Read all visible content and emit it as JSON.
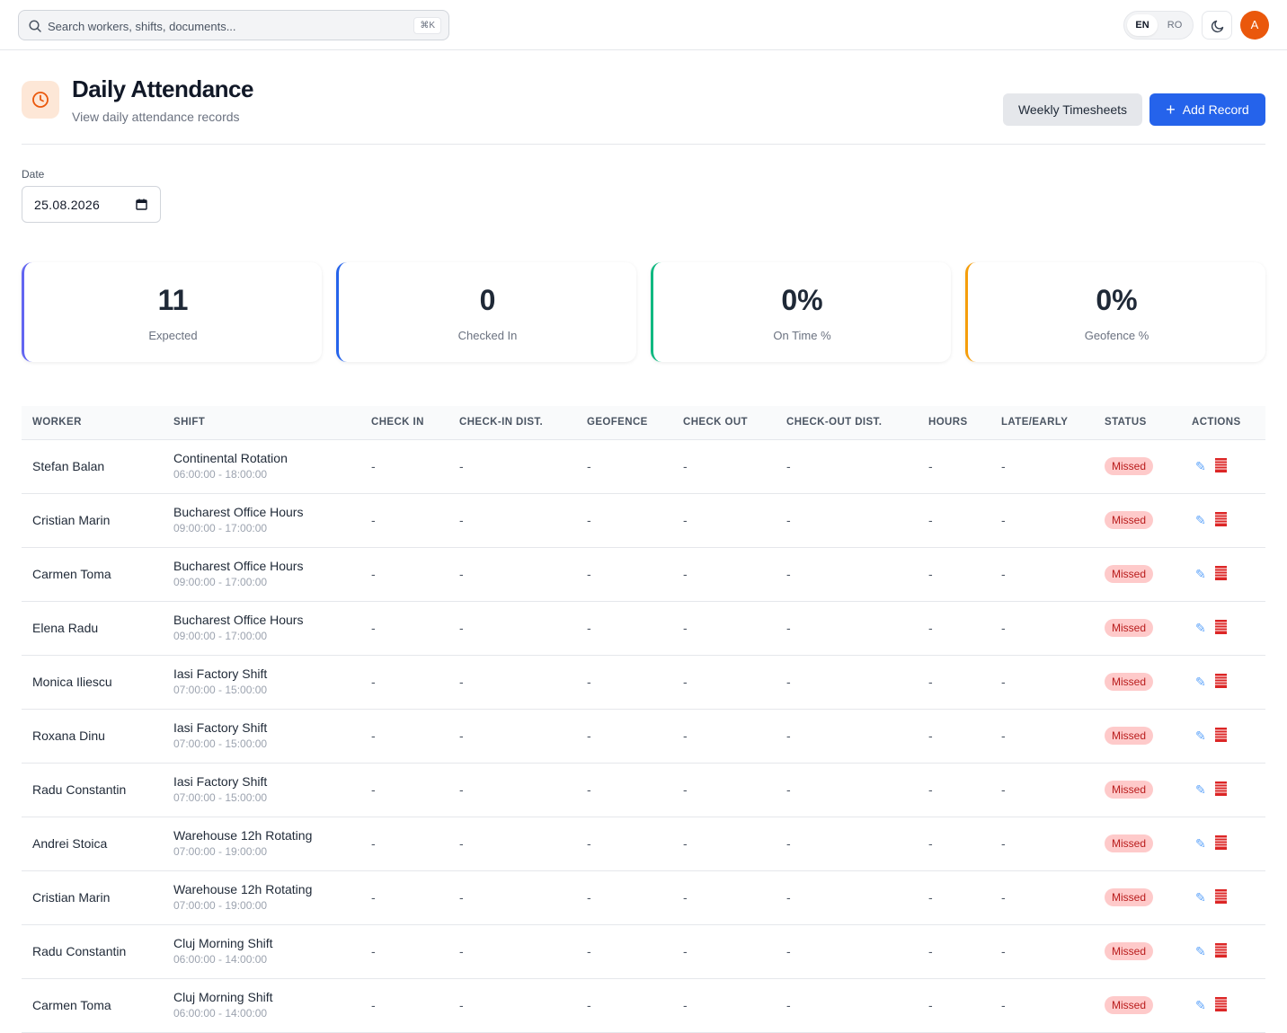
{
  "topbar": {
    "search_placeholder": "Search workers, shifts, documents...",
    "shortcut": "⌘K",
    "lang_en": "EN",
    "lang_ro": "RO",
    "avatar_initial": "A"
  },
  "header": {
    "title": "Daily Attendance",
    "subtitle": "View daily attendance records",
    "weekly_button": "Weekly Timesheets",
    "add_button": "Add Record"
  },
  "filter": {
    "date_label": "Date",
    "date_value": "25.08.2026"
  },
  "stats": [
    {
      "value": "11",
      "label": "Expected",
      "color": "#6366f1"
    },
    {
      "value": "0",
      "label": "Checked In",
      "color": "#2563eb"
    },
    {
      "value": "0%",
      "label": "On Time %",
      "color": "#10b981"
    },
    {
      "value": "0%",
      "label": "Geofence %",
      "color": "#f59e0b"
    }
  ],
  "table": {
    "columns": [
      "WORKER",
      "SHIFT",
      "CHECK IN",
      "CHECK-IN DIST.",
      "GEOFENCE",
      "CHECK OUT",
      "CHECK-OUT DIST.",
      "HOURS",
      "LATE/EARLY",
      "STATUS",
      "ACTIONS"
    ],
    "rows": [
      {
        "worker": "Stefan Balan",
        "shift": "Continental Rotation",
        "time": "06:00:00 - 18:00:00",
        "check_in": "-",
        "check_in_dist": "-",
        "geofence": "-",
        "check_out": "-",
        "check_out_dist": "-",
        "hours": "-",
        "late_early": "-",
        "status": "Missed"
      },
      {
        "worker": "Cristian Marin",
        "shift": "Bucharest Office Hours",
        "time": "09:00:00 - 17:00:00",
        "check_in": "-",
        "check_in_dist": "-",
        "geofence": "-",
        "check_out": "-",
        "check_out_dist": "-",
        "hours": "-",
        "late_early": "-",
        "status": "Missed"
      },
      {
        "worker": "Carmen Toma",
        "shift": "Bucharest Office Hours",
        "time": "09:00:00 - 17:00:00",
        "check_in": "-",
        "check_in_dist": "-",
        "geofence": "-",
        "check_out": "-",
        "check_out_dist": "-",
        "hours": "-",
        "late_early": "-",
        "status": "Missed"
      },
      {
        "worker": "Elena Radu",
        "shift": "Bucharest Office Hours",
        "time": "09:00:00 - 17:00:00",
        "check_in": "-",
        "check_in_dist": "-",
        "geofence": "-",
        "check_out": "-",
        "check_out_dist": "-",
        "hours": "-",
        "late_early": "-",
        "status": "Missed"
      },
      {
        "worker": "Monica Iliescu",
        "shift": "Iasi Factory Shift",
        "time": "07:00:00 - 15:00:00",
        "check_in": "-",
        "check_in_dist": "-",
        "geofence": "-",
        "check_out": "-",
        "check_out_dist": "-",
        "hours": "-",
        "late_early": "-",
        "status": "Missed"
      },
      {
        "worker": "Roxana Dinu",
        "shift": "Iasi Factory Shift",
        "time": "07:00:00 - 15:00:00",
        "check_in": "-",
        "check_in_dist": "-",
        "geofence": "-",
        "check_out": "-",
        "check_out_dist": "-",
        "hours": "-",
        "late_early": "-",
        "status": "Missed"
      },
      {
        "worker": "Radu Constantin",
        "shift": "Iasi Factory Shift",
        "time": "07:00:00 - 15:00:00",
        "check_in": "-",
        "check_in_dist": "-",
        "geofence": "-",
        "check_out": "-",
        "check_out_dist": "-",
        "hours": "-",
        "late_early": "-",
        "status": "Missed"
      },
      {
        "worker": "Andrei Stoica",
        "shift": "Warehouse 12h Rotating",
        "time": "07:00:00 - 19:00:00",
        "check_in": "-",
        "check_in_dist": "-",
        "geofence": "-",
        "check_out": "-",
        "check_out_dist": "-",
        "hours": "-",
        "late_early": "-",
        "status": "Missed"
      },
      {
        "worker": "Cristian Marin",
        "shift": "Warehouse 12h Rotating",
        "time": "07:00:00 - 19:00:00",
        "check_in": "-",
        "check_in_dist": "-",
        "geofence": "-",
        "check_out": "-",
        "check_out_dist": "-",
        "hours": "-",
        "late_early": "-",
        "status": "Missed"
      },
      {
        "worker": "Radu Constantin",
        "shift": "Cluj Morning Shift",
        "time": "06:00:00 - 14:00:00",
        "check_in": "-",
        "check_in_dist": "-",
        "geofence": "-",
        "check_out": "-",
        "check_out_dist": "-",
        "hours": "-",
        "late_early": "-",
        "status": "Missed"
      },
      {
        "worker": "Carmen Toma",
        "shift": "Cluj Morning Shift",
        "time": "06:00:00 - 14:00:00",
        "check_in": "-",
        "check_in_dist": "-",
        "geofence": "-",
        "check_out": "-",
        "check_out_dist": "-",
        "hours": "-",
        "late_early": "-",
        "status": "Missed"
      }
    ]
  },
  "icons": {
    "search": "search-icon",
    "theme": "moon-icon",
    "page": "clock-icon",
    "calendar": "calendar-icon",
    "edit": "pencil-icon",
    "delete": "trash-icon"
  },
  "colors": {
    "primary": "#2563eb",
    "accent": "#ea580c",
    "missed_bg": "#fecaca",
    "missed_text": "#b91c1c"
  }
}
